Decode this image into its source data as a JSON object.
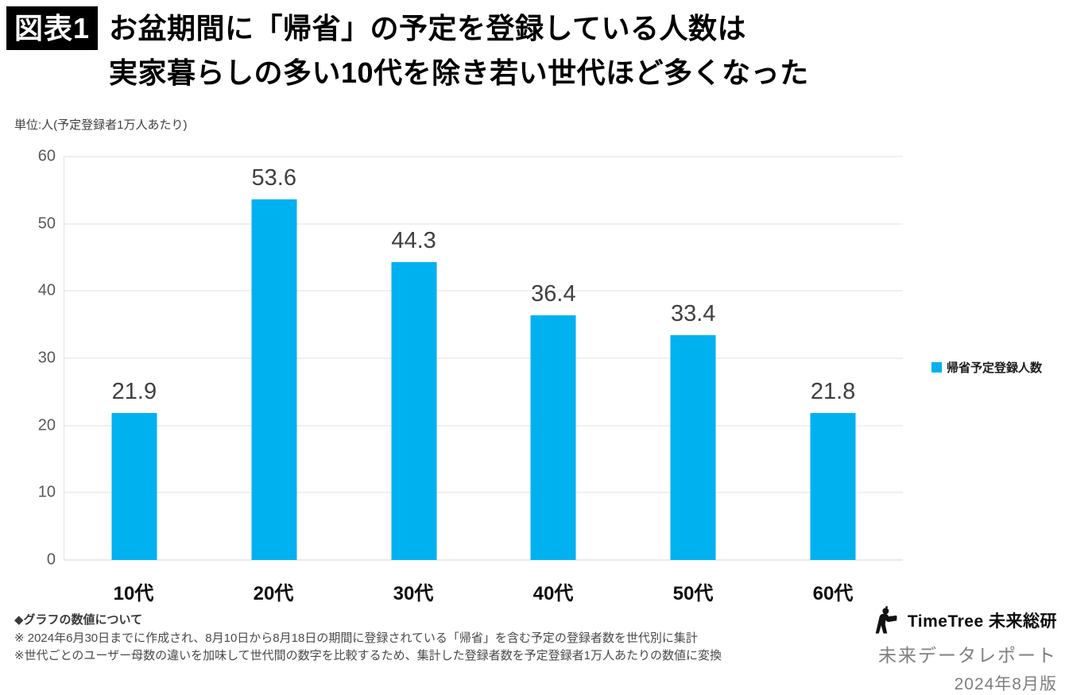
{
  "header": {
    "badge": "図表1",
    "title_line1": "お盆期間に「帰省」の予定を登録している人数は",
    "title_line2": "実家暮らしの多い10代を除き若い世代ほど多くなった"
  },
  "chart": {
    "unit_label": "単位:人(予定登録者1万人あたり)",
    "legend_label": "帰省予定登録人数"
  },
  "chart_data": {
    "type": "bar",
    "title": "お盆期間に「帰省」の予定を登録している人数(世代別、予定登録者1万人あたり)",
    "categories": [
      "10代",
      "20代",
      "30代",
      "40代",
      "50代",
      "60代"
    ],
    "values": [
      21.9,
      53.6,
      44.3,
      36.4,
      33.4,
      21.8
    ],
    "series_name": "帰省予定登録人数",
    "ylabel": "単位:人(予定登録者1万人あたり)",
    "ylim": [
      0,
      60
    ],
    "yticks": [
      0,
      10,
      20,
      30,
      40,
      50,
      60
    ],
    "grid": true,
    "legend_position": "right",
    "bar_color": "#00B1F0"
  },
  "footer": {
    "notes_title": "◆グラフの数値について",
    "notes": [
      "※ 2024年6月30日までに作成され、8月10日から8月18日の期間に登録されている「帰省」を含む予定の登録者数を世代別に集計",
      "※世代ごとのユーザー母数の違いを加味して世代間の数字を比較するため、集計した登録者数を予定登録者1万人あたりの数値に変換"
    ],
    "brand": {
      "logo_text": "TimeTree 未来総研",
      "report_name": "未来データレポート",
      "edition": "2024年8月版"
    }
  }
}
